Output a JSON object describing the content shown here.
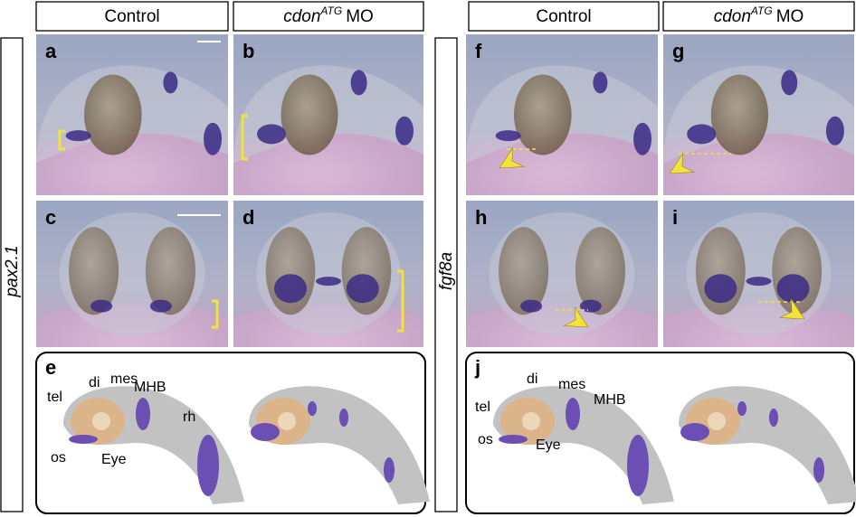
{
  "left": {
    "headers": [
      {
        "text": "Control"
      },
      {
        "gene": "cdon",
        "superscript": "ATG",
        "suffix": "MO"
      }
    ],
    "row_label": "pax2.1",
    "panels": [
      "a",
      "b",
      "c",
      "d",
      "e"
    ],
    "diagram_labels": [
      "tel",
      "di",
      "mes",
      "MHB",
      "rh",
      "os",
      "Eye"
    ]
  },
  "right": {
    "headers": [
      {
        "text": "Control"
      },
      {
        "gene": "cdon",
        "superscript": "ATG",
        "suffix": "MO"
      }
    ],
    "row_label": "fgf8a",
    "panels": [
      "f",
      "g",
      "h",
      "i",
      "j"
    ],
    "diagram_labels": [
      "di",
      "mes",
      "MHB",
      "tel",
      "os",
      "Eye"
    ]
  }
}
